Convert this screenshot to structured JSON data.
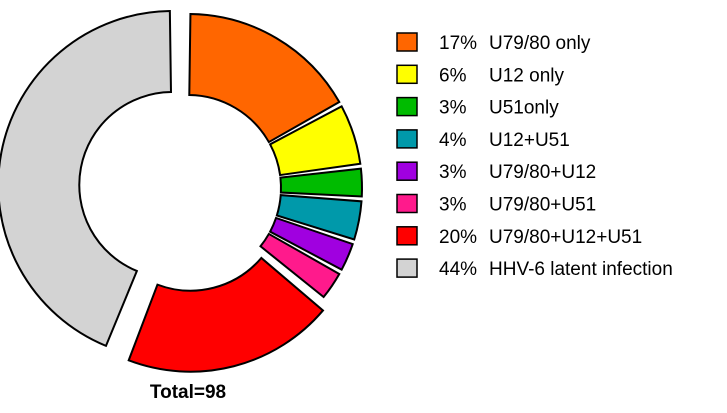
{
  "chart_data": {
    "type": "pie",
    "subtype": "donut",
    "total_label": "Total=98",
    "legend_position": "right",
    "slices": [
      {
        "pct": 17,
        "pct_label": "17%",
        "label": "U79/80 only",
        "color": "#FF6600"
      },
      {
        "pct": 6,
        "pct_label": "6%",
        "label": "U12 only",
        "color": "#FFFF00"
      },
      {
        "pct": 3,
        "pct_label": "3%",
        "label": "U51only",
        "color": "#00BB00"
      },
      {
        "pct": 4,
        "pct_label": "4%",
        "label": "U12+U51",
        "color": "#0099AA"
      },
      {
        "pct": 3,
        "pct_label": "3%",
        "label": "U79/80+U12",
        "color": "#A000E0"
      },
      {
        "pct": 3,
        "pct_label": "3%",
        "label": "U79/80+U51",
        "color": "#FF1A8C"
      },
      {
        "pct": 20,
        "pct_label": "20%",
        "label": "U79/80+U12+U51",
        "color": "#FF0000"
      },
      {
        "pct": 44,
        "pct_label": "44%",
        "label": "HHV-6 latent infection",
        "color": "#D3D3D3"
      }
    ]
  }
}
